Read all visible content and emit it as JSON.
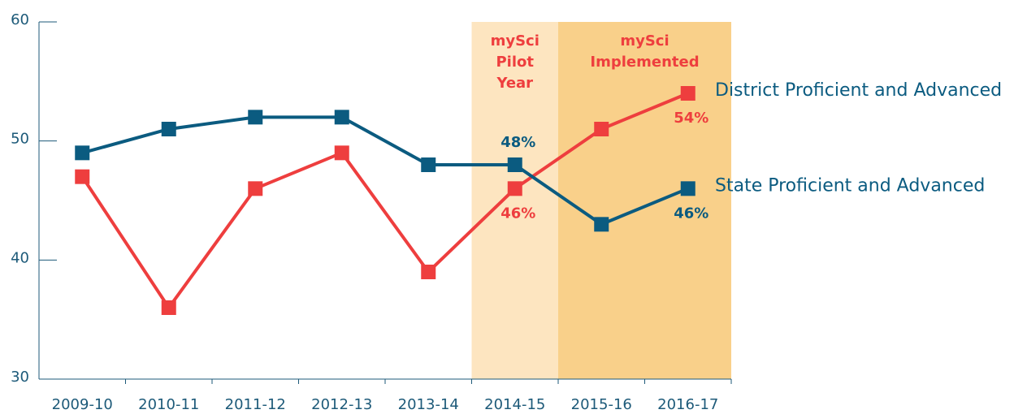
{
  "chart_data": {
    "type": "line",
    "categories": [
      "2009-10",
      "2010-11",
      "2011-12",
      "2012-13",
      "2013-14",
      "2014-15",
      "2015-16",
      "2016-17"
    ],
    "series": [
      {
        "name": "District Proficient and Advanced",
        "color": "#ee3e3e",
        "values": [
          47,
          36,
          46,
          49,
          39,
          46,
          51,
          54
        ],
        "value_labels": [
          null,
          null,
          null,
          null,
          null,
          "46%",
          null,
          "54%"
        ]
      },
      {
        "name": "State Proficient and Advanced",
        "color": "#0b5b80",
        "values": [
          49,
          51,
          52,
          52,
          48,
          48,
          43,
          46
        ],
        "value_labels": [
          null,
          null,
          null,
          null,
          null,
          "48%",
          null,
          "46%"
        ]
      }
    ],
    "annotations": [
      {
        "lines": [
          "mySci",
          "Pilot",
          "Year"
        ]
      },
      {
        "lines": [
          "mySci",
          "Implemented"
        ]
      }
    ],
    "ylim": [
      30,
      60
    ],
    "yticks": [
      30,
      40,
      50,
      60
    ]
  }
}
